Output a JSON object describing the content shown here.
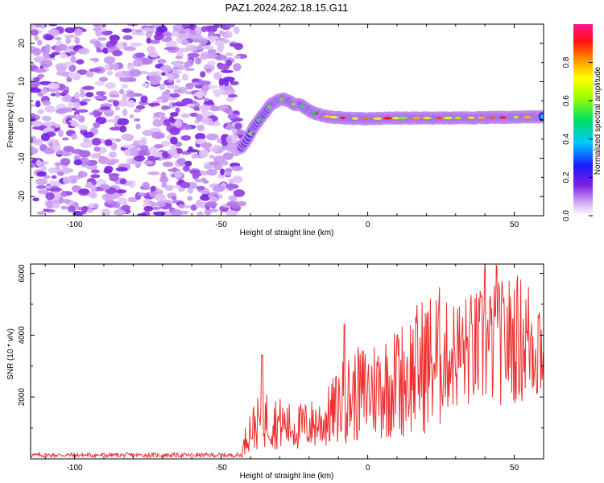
{
  "title": "PAZ1.2024.262.18.15.G11",
  "chart_data": [
    {
      "type": "heatmap",
      "xlabel": "Height of straight line (km)",
      "ylabel": "Frequency (Hz)",
      "xlim": [
        -115,
        60
      ],
      "ylim": [
        -25,
        25
      ],
      "xticks": [
        -100,
        -50,
        0,
        50
      ],
      "yticks": [
        -20,
        -10,
        0,
        10,
        20
      ],
      "colorbar": {
        "label": "Normalized spectral amplitude",
        "range": [
          0.0,
          1.0
        ],
        "ticks": [
          "0.0",
          "0.2",
          "0.4",
          "0.6",
          "0.8"
        ],
        "colormap": "rainbow (white-violet-blue-cyan-green-yellow-red-magenta)"
      },
      "noise_region_x": [
        -115,
        -43
      ],
      "signal_track": {
        "x": [
          -43,
          -41,
          -39,
          -37,
          -35,
          -33,
          -31,
          -29,
          -27,
          -25,
          -23,
          -21,
          -19,
          -17,
          -15,
          -10,
          -5,
          0,
          10,
          20,
          30,
          40,
          50,
          60
        ],
        "frequency": [
          -7,
          -5,
          -2,
          0,
          2,
          4,
          5,
          5.5,
          5,
          4,
          4,
          3,
          2,
          1.5,
          1,
          0.6,
          0.4,
          0.3,
          0.5,
          0.5,
          0.5,
          0.6,
          0.7,
          0.8
        ]
      }
    },
    {
      "type": "line",
      "xlabel": "Height of straight line (km)",
      "ylabel": "SNR (10 * v/v)",
      "xlim": [
        -115,
        60
      ],
      "ylim": [
        0,
        6300
      ],
      "xticks": [
        -100,
        -50,
        0,
        50
      ],
      "yticks": [
        2000,
        4000,
        6000
      ],
      "series": [
        {
          "color": "#ee3030",
          "trend_x": [
            -115,
            -43,
            -41,
            -35,
            -25,
            -15,
            -8,
            0,
            10,
            20,
            30,
            40,
            50,
            60
          ],
          "trend_y": [
            120,
            120,
            900,
            1300,
            1000,
            1200,
            1900,
            2200,
            2500,
            3100,
            3400,
            3600,
            3900,
            3800
          ],
          "spikes": [
            {
              "x": -36,
              "y": 3350
            },
            {
              "x": -8,
              "y": 4350
            },
            {
              "x": 10,
              "y": 4000
            },
            {
              "x": 40,
              "y": 6200
            },
            {
              "x": 44,
              "y": 6250
            }
          ]
        }
      ]
    }
  ]
}
